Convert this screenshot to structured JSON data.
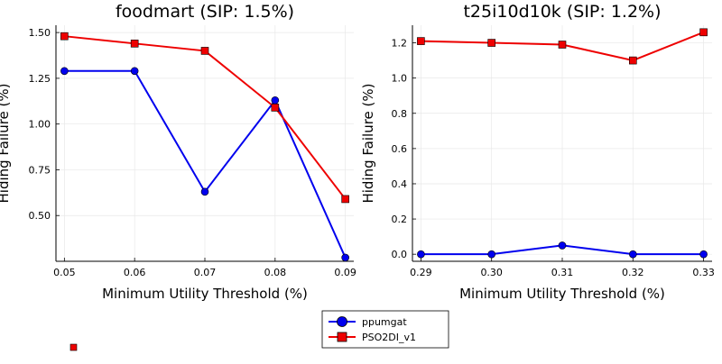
{
  "chart_data": [
    {
      "type": "line",
      "title": "foodmart (SIP: 1.5%)",
      "xlabel": "Minimum Utility Threshold (%)",
      "ylabel": "Hiding Failure (%)",
      "x": [
        0.05,
        0.06,
        0.07,
        0.08,
        0.09
      ],
      "xticks": [
        "0.05",
        "0.06",
        "0.07",
        "0.08",
        "0.09"
      ],
      "yticks": [
        "0.50",
        "0.75",
        "1.00",
        "1.25",
        "1.50"
      ],
      "ytick_values": [
        0.5,
        0.75,
        1.0,
        1.25,
        1.5
      ],
      "xlim": [
        0.0488,
        0.0912
      ],
      "ylim": [
        0.25,
        1.54
      ],
      "grid": true,
      "series": [
        {
          "name": "ppumgat",
          "color": "#0000ee",
          "marker": "circle",
          "values": [
            1.29,
            1.29,
            0.63,
            1.13,
            0.27
          ]
        },
        {
          "name": "PSO2DI_v1",
          "color": "#ee0000",
          "marker": "square",
          "values": [
            1.48,
            1.44,
            1.4,
            1.09,
            0.59
          ]
        }
      ]
    },
    {
      "type": "line",
      "title": "t25i10d10k (SIP: 1.2%)",
      "xlabel": "Minimum Utility Threshold (%)",
      "ylabel": "Hiding Failure (%)",
      "x": [
        0.29,
        0.3,
        0.31,
        0.32,
        0.33
      ],
      "xticks": [
        "0.29",
        "0.30",
        "0.31",
        "0.32",
        "0.33"
      ],
      "yticks": [
        "0.0",
        "0.2",
        "0.4",
        "0.6",
        "0.8",
        "1.0",
        "1.2"
      ],
      "ytick_values": [
        0.0,
        0.2,
        0.4,
        0.6,
        0.8,
        1.0,
        1.2
      ],
      "xlim": [
        0.2888,
        0.3312
      ],
      "ylim": [
        -0.04,
        1.3
      ],
      "grid": true,
      "series": [
        {
          "name": "ppumgat",
          "color": "#0000ee",
          "marker": "circle",
          "values": [
            0.0,
            0.0,
            0.05,
            0.0,
            0.0
          ]
        },
        {
          "name": "PSO2DI_v1",
          "color": "#ee0000",
          "marker": "square",
          "values": [
            1.21,
            1.2,
            1.19,
            1.1,
            1.26
          ]
        }
      ]
    }
  ],
  "legend": {
    "placement": "bottom-center",
    "entries": [
      {
        "label": "ppumgat",
        "color": "#0000ee",
        "marker": "circle"
      },
      {
        "label": "PSO2DI_v1",
        "color": "#ee0000",
        "marker": "square"
      }
    ]
  }
}
